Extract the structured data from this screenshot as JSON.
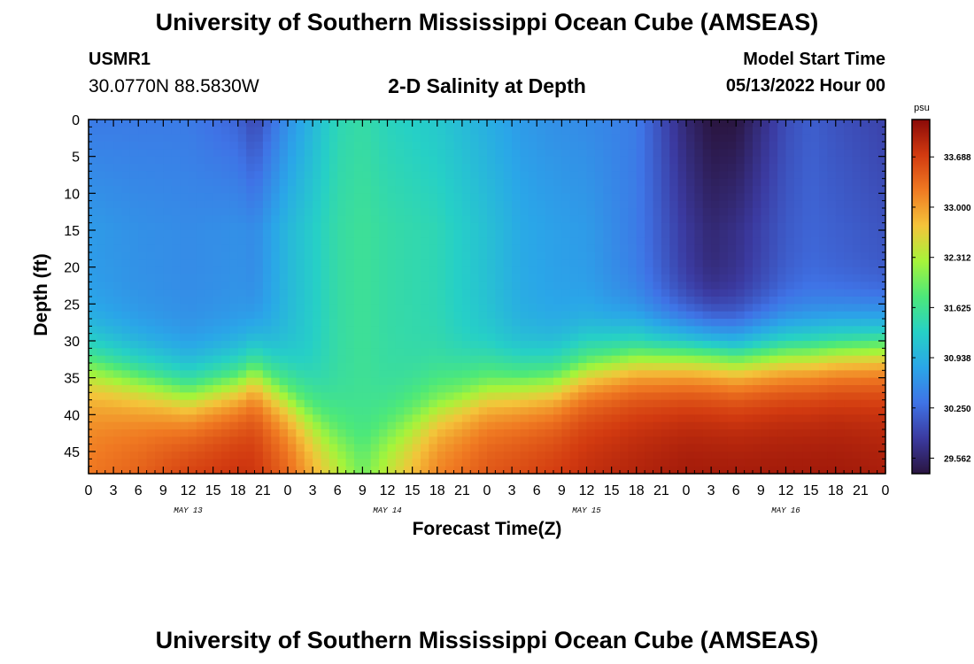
{
  "header": {
    "title": "University of Southern Mississippi Ocean Cube (AMSEAS)",
    "station_id": "USMR1",
    "coords": "30.0770N  88.5830W",
    "chart_title": "2-D Salinity at Depth",
    "model_start_label": "Model Start Time",
    "model_start_value": "05/13/2022 Hour 00"
  },
  "footer": {
    "title": "University of Southern Mississippi Ocean Cube (AMSEAS)"
  },
  "chart_data": {
    "type": "heatmap",
    "title": "2-D Salinity at Depth",
    "xlabel": "Forecast Time(Z)",
    "ylabel": "Depth (ft)",
    "x_tick_labels": [
      "0",
      "3",
      "6",
      "9",
      "12",
      "15",
      "18",
      "21",
      "0",
      "3",
      "6",
      "9",
      "12",
      "15",
      "18",
      "21",
      "0",
      "3",
      "6",
      "9",
      "12",
      "15",
      "18",
      "21",
      "0",
      "3",
      "6",
      "9",
      "12",
      "15",
      "18",
      "21",
      "0"
    ],
    "x_range_hours": [
      0,
      96
    ],
    "day_labels": [
      {
        "label": "MAY 13",
        "hour": 12
      },
      {
        "label": "MAY 14",
        "hour": 36
      },
      {
        "label": "MAY 15",
        "hour": 60
      },
      {
        "label": "MAY 16",
        "hour": 84
      }
    ],
    "y_ticks": [
      0,
      5,
      10,
      15,
      20,
      25,
      30,
      35,
      40,
      45
    ],
    "y_range": [
      0,
      48
    ],
    "y_inverted": true,
    "colorbar": {
      "unit": "psu",
      "ticks": [
        33.688,
        33.0,
        32.312,
        31.625,
        30.938,
        30.25,
        29.562
      ],
      "range": [
        29.35,
        34.2
      ],
      "colors": [
        "#2a1540",
        "#3b3aa0",
        "#3f73e6",
        "#2aa6e8",
        "#26d0c6",
        "#4ce87a",
        "#a6f43a",
        "#f4c43a",
        "#f07a22",
        "#d23a10",
        "#8a0a08"
      ]
    },
    "column_hours": [
      0,
      6,
      12,
      18,
      20,
      24,
      30,
      33,
      36,
      42,
      48,
      52,
      56,
      60,
      66,
      72,
      75,
      78,
      84,
      87,
      90,
      96
    ],
    "column_profiles": {
      "surface_salinity": [
        30.4,
        30.4,
        30.4,
        30.2,
        29.95,
        30.6,
        31.4,
        31.5,
        31.35,
        31.2,
        30.9,
        30.7,
        30.6,
        30.55,
        30.4,
        29.6,
        29.35,
        29.35,
        30.0,
        30.15,
        30.05,
        29.9
      ],
      "mid_salinity": [
        30.7,
        30.6,
        30.55,
        30.6,
        30.55,
        31.0,
        31.5,
        31.6,
        31.5,
        31.4,
        31.1,
        30.85,
        30.75,
        30.7,
        30.4,
        29.8,
        29.6,
        29.7,
        30.1,
        30.2,
        30.15,
        30.05
      ],
      "pycnocline_depth": [
        31.5,
        33.5,
        35.5,
        34.0,
        32.5,
        36.0,
        41.5,
        43.0,
        41.0,
        37.5,
        35.0,
        34.5,
        34.0,
        32.0,
        30.5,
        30.0,
        30.0,
        30.5,
        30.0,
        30.0,
        29.5,
        29.0
      ],
      "bottom_salinity": [
        33.3,
        33.5,
        33.8,
        33.9,
        33.85,
        33.5,
        32.6,
        32.1,
        32.6,
        33.3,
        33.6,
        33.7,
        33.8,
        33.9,
        34.0,
        34.1,
        34.1,
        34.1,
        34.1,
        34.1,
        34.1,
        34.05
      ]
    }
  }
}
